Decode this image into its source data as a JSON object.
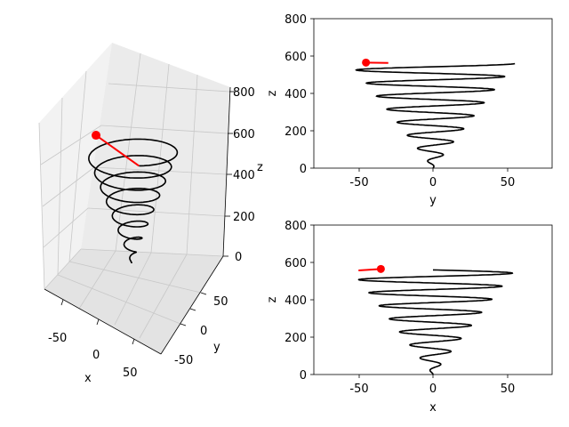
{
  "colors": {
    "helix": "#000000",
    "trail": "#ff0000",
    "pane_light": "#f2f2f2",
    "pane_mid": "#ebebeb",
    "pane_dark": "#e3e3e3",
    "grid": "#c8c8c8",
    "axis": "#000000"
  },
  "chart_data": [
    {
      "type": "line3d",
      "title": "",
      "xlabel": "x",
      "ylabel": "y",
      "zlabel": "z",
      "x_ticks": [
        "-50",
        "0",
        "50"
      ],
      "y_ticks": [
        "-50",
        "0",
        "50"
      ],
      "z_ticks": [
        "0",
        "200",
        "400",
        "600",
        "800"
      ],
      "xlim": [
        -80,
        80
      ],
      "ylim": [
        -80,
        80
      ],
      "zlim": [
        0,
        800
      ],
      "grid": true,
      "series": [
        {
          "role": "helix",
          "color": "#000000",
          "shape": "conical spiral: radius grows from ~0 to ~55 as z rises from 0 to ~560",
          "z_range": [
            0,
            560
          ],
          "max_radius": 55,
          "turns": 8
        },
        {
          "role": "trail",
          "color": "#ff0000",
          "marker": "filled circle at current point",
          "current_point": {
            "x": -35,
            "y": -45,
            "z": 565
          }
        }
      ]
    },
    {
      "type": "line",
      "title": "",
      "xlabel": "y",
      "ylabel": "z",
      "x_ticks": [
        "-50",
        "0",
        "50"
      ],
      "y_ticks": [
        "0",
        "200",
        "400",
        "600",
        "800"
      ],
      "xlim": [
        -80,
        80
      ],
      "ylim": [
        0,
        800
      ],
      "grid": false,
      "series": [
        {
          "role": "helix",
          "color": "#000000",
          "z_range": [
            0,
            560
          ],
          "max_amplitude": 55
        },
        {
          "role": "trail",
          "color": "#ff0000",
          "current_point": {
            "h": -45,
            "z": 565
          },
          "trail_end": {
            "h": -30,
            "z": 563
          }
        }
      ]
    },
    {
      "type": "line",
      "title": "",
      "xlabel": "x",
      "ylabel": "z",
      "x_ticks": [
        "-50",
        "0",
        "50"
      ],
      "y_ticks": [
        "0",
        "200",
        "400",
        "600",
        "800"
      ],
      "xlim": [
        -80,
        80
      ],
      "ylim": [
        0,
        800
      ],
      "grid": false,
      "series": [
        {
          "role": "helix",
          "color": "#000000",
          "z_range": [
            0,
            560
          ],
          "max_amplitude": 55
        },
        {
          "role": "trail",
          "color": "#ff0000",
          "current_point": {
            "h": -35,
            "z": 565
          },
          "trail_end": {
            "h": -50,
            "z": 557
          }
        }
      ]
    }
  ]
}
